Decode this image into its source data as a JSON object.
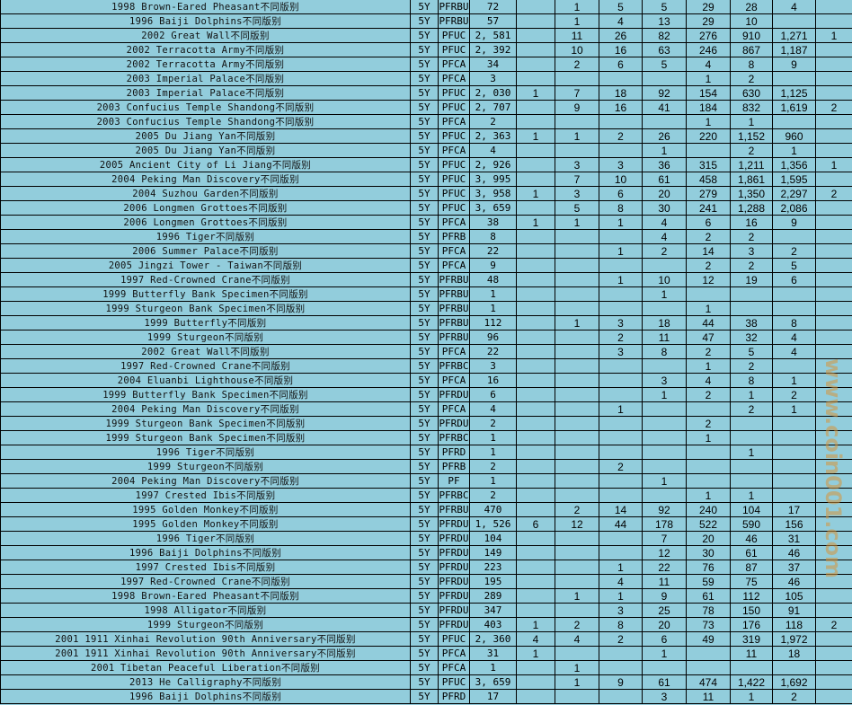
{
  "colors": {
    "cell_bg": "#92cddc",
    "border": "#000000",
    "watermark": "#d6963c"
  },
  "watermark": "www.coin001.com",
  "rows": [
    {
      "name": "1998 Brown-Eared Pheasant不同版别",
      "period": "5Y",
      "type": "PFRBU",
      "total": "72",
      "grades": [
        "",
        "1",
        "5",
        "5",
        "29",
        "28",
        "4",
        ""
      ]
    },
    {
      "name": "1996 Baiji Dolphins不同版别",
      "period": "5Y",
      "type": "PFRBU",
      "total": "57",
      "grades": [
        "",
        "1",
        "4",
        "13",
        "29",
        "10",
        "",
        ""
      ]
    },
    {
      "name": "2002 Great Wall不同版别",
      "period": "5Y",
      "type": "PFUC",
      "total": "2, 581",
      "grades": [
        "",
        "11",
        "26",
        "82",
        "276",
        "910",
        "1,271",
        "1"
      ]
    },
    {
      "name": "2002 Terracotta Army不同版别",
      "period": "5Y",
      "type": "PFUC",
      "total": "2, 392",
      "grades": [
        "",
        "10",
        "16",
        "63",
        "246",
        "867",
        "1,187",
        ""
      ]
    },
    {
      "name": "2002 Terracotta Army不同版别",
      "period": "5Y",
      "type": "PFCA",
      "total": "34",
      "grades": [
        "",
        "2",
        "6",
        "5",
        "4",
        "8",
        "9",
        ""
      ]
    },
    {
      "name": "2003 Imperial Palace不同版别",
      "period": "5Y",
      "type": "PFCA",
      "total": "3",
      "grades": [
        "",
        "",
        "",
        "",
        "1",
        "2",
        "",
        ""
      ]
    },
    {
      "name": "2003 Imperial Palace不同版别",
      "period": "5Y",
      "type": "PFUC",
      "total": "2, 030",
      "grades": [
        "1",
        "7",
        "18",
        "92",
        "154",
        "630",
        "1,125",
        ""
      ]
    },
    {
      "name": "2003 Confucius Temple Shandong不同版别",
      "period": "5Y",
      "type": "PFUC",
      "total": "2, 707",
      "grades": [
        "",
        "9",
        "16",
        "41",
        "184",
        "832",
        "1,619",
        "2"
      ]
    },
    {
      "name": "2003 Confucius Temple Shandong不同版别",
      "period": "5Y",
      "type": "PFCA",
      "total": "2",
      "grades": [
        "",
        "",
        "",
        "",
        "1",
        "1",
        "",
        ""
      ]
    },
    {
      "name": "2005 Du Jiang Yan不同版别",
      "period": "5Y",
      "type": "PFUC",
      "total": "2, 363",
      "grades": [
        "1",
        "1",
        "2",
        "26",
        "220",
        "1,152",
        "960",
        ""
      ]
    },
    {
      "name": "2005 Du Jiang Yan不同版别",
      "period": "5Y",
      "type": "PFCA",
      "total": "4",
      "grades": [
        "",
        "",
        "",
        "1",
        "",
        "2",
        "1",
        ""
      ]
    },
    {
      "name": "2005 Ancient City of Li Jiang不同版别",
      "period": "5Y",
      "type": "PFUC",
      "total": "2, 926",
      "grades": [
        "",
        "3",
        "3",
        "36",
        "315",
        "1,211",
        "1,356",
        "1"
      ]
    },
    {
      "name": "2004 Peking Man Discovery不同版别",
      "period": "5Y",
      "type": "PFUC",
      "total": "3, 995",
      "grades": [
        "",
        "7",
        "10",
        "61",
        "458",
        "1,861",
        "1,595",
        ""
      ]
    },
    {
      "name": "2004 Suzhou Garden不同版别",
      "period": "5Y",
      "type": "PFUC",
      "total": "3, 958",
      "grades": [
        "1",
        "3",
        "6",
        "20",
        "279",
        "1,350",
        "2,297",
        "2"
      ]
    },
    {
      "name": "2006 Longmen Grottoes不同版别",
      "period": "5Y",
      "type": "PFUC",
      "total": "3, 659",
      "grades": [
        "",
        "5",
        "8",
        "30",
        "241",
        "1,288",
        "2,086",
        ""
      ]
    },
    {
      "name": "2006 Longmen Grottoes不同版别",
      "period": "5Y",
      "type": "PFCA",
      "total": "38",
      "grades": [
        "1",
        "1",
        "1",
        "4",
        "6",
        "16",
        "9",
        ""
      ]
    },
    {
      "name": "1996 Tiger不同版别",
      "period": "5Y",
      "type": "PFRB",
      "total": "8",
      "grades": [
        "",
        "",
        "",
        "4",
        "2",
        "2",
        "",
        ""
      ]
    },
    {
      "name": "2006 Summer Palace不同版别",
      "period": "5Y",
      "type": "PFCA",
      "total": "22",
      "grades": [
        "",
        "",
        "1",
        "2",
        "14",
        "3",
        "2",
        ""
      ]
    },
    {
      "name": "2005 Jingzi Tower - Taiwan不同版别",
      "period": "5Y",
      "type": "PFCA",
      "total": "9",
      "grades": [
        "",
        "",
        "",
        "",
        "2",
        "2",
        "5",
        ""
      ]
    },
    {
      "name": "1997 Red-Crowned Crane不同版别",
      "period": "5Y",
      "type": "PFRBU",
      "total": "48",
      "grades": [
        "",
        "",
        "1",
        "10",
        "12",
        "19",
        "6",
        ""
      ]
    },
    {
      "name": "1999 Butterfly Bank Specimen不同版别",
      "period": "5Y",
      "type": "PFRBU",
      "total": "1",
      "grades": [
        "",
        "",
        "",
        "1",
        "",
        "",
        "",
        ""
      ]
    },
    {
      "name": "1999 Sturgeon Bank Specimen不同版别",
      "period": "5Y",
      "type": "PFRBU",
      "total": "1",
      "grades": [
        "",
        "",
        "",
        "",
        "1",
        "",
        "",
        ""
      ]
    },
    {
      "name": "1999 Butterfly不同版别",
      "period": "5Y",
      "type": "PFRBU",
      "total": "112",
      "grades": [
        "",
        "1",
        "3",
        "18",
        "44",
        "38",
        "8",
        ""
      ]
    },
    {
      "name": "1999 Sturgeon不同版别",
      "period": "5Y",
      "type": "PFRBU",
      "total": "96",
      "grades": [
        "",
        "",
        "2",
        "11",
        "47",
        "32",
        "4",
        ""
      ]
    },
    {
      "name": "2002 Great Wall不同版别",
      "period": "5Y",
      "type": "PFCA",
      "total": "22",
      "grades": [
        "",
        "",
        "3",
        "8",
        "2",
        "5",
        "4",
        ""
      ]
    },
    {
      "name": "1997 Red-Crowned Crane不同版别",
      "period": "5Y",
      "type": "PFRBC",
      "total": "3",
      "grades": [
        "",
        "",
        "",
        "",
        "1",
        "2",
        "",
        ""
      ]
    },
    {
      "name": "2004 Eluanbi Lighthouse不同版别",
      "period": "5Y",
      "type": "PFCA",
      "total": "16",
      "grades": [
        "",
        "",
        "",
        "3",
        "4",
        "8",
        "1",
        ""
      ]
    },
    {
      "name": "1999 Butterfly Bank Specimen不同版别",
      "period": "5Y",
      "type": "PFRDU",
      "total": "6",
      "grades": [
        "",
        "",
        "",
        "1",
        "2",
        "1",
        "2",
        ""
      ]
    },
    {
      "name": "2004 Peking Man Discovery不同版别",
      "period": "5Y",
      "type": "PFCA",
      "total": "4",
      "grades": [
        "",
        "",
        "1",
        "",
        "",
        "2",
        "1",
        ""
      ]
    },
    {
      "name": "1999 Sturgeon Bank Specimen不同版别",
      "period": "5Y",
      "type": "PFRDU",
      "total": "2",
      "grades": [
        "",
        "",
        "",
        "",
        "2",
        "",
        "",
        ""
      ]
    },
    {
      "name": "1999 Sturgeon Bank Specimen不同版别",
      "period": "5Y",
      "type": "PFRBC",
      "total": "1",
      "grades": [
        "",
        "",
        "",
        "",
        "1",
        "",
        "",
        ""
      ]
    },
    {
      "name": "1996 Tiger不同版别",
      "period": "5Y",
      "type": "PFRD",
      "total": "1",
      "grades": [
        "",
        "",
        "",
        "",
        "",
        "1",
        "",
        ""
      ]
    },
    {
      "name": "1999 Sturgeon不同版别",
      "period": "5Y",
      "type": "PFRB",
      "total": "2",
      "grades": [
        "",
        "",
        "2",
        "",
        "",
        "",
        "",
        ""
      ]
    },
    {
      "name": "2004 Peking Man Discovery不同版别",
      "period": "5Y",
      "type": "PF",
      "total": "1",
      "grades": [
        "",
        "",
        "",
        "1",
        "",
        "",
        "",
        ""
      ]
    },
    {
      "name": "1997 Crested Ibis不同版别",
      "period": "5Y",
      "type": "PFRBC",
      "total": "2",
      "grades": [
        "",
        "",
        "",
        "",
        "1",
        "1",
        "",
        ""
      ]
    },
    {
      "name": "1995 Golden Monkey不同版别",
      "period": "5Y",
      "type": "PFRBU",
      "total": "470",
      "grades": [
        "",
        "2",
        "14",
        "92",
        "240",
        "104",
        "17",
        ""
      ]
    },
    {
      "name": "1995 Golden Monkey不同版别",
      "period": "5Y",
      "type": "PFRDU",
      "total": "1, 526",
      "grades": [
        "6",
        "12",
        "44",
        "178",
        "522",
        "590",
        "156",
        ""
      ]
    },
    {
      "name": "1996 Tiger不同版别",
      "period": "5Y",
      "type": "PFRDU",
      "total": "104",
      "grades": [
        "",
        "",
        "",
        "7",
        "20",
        "46",
        "31",
        ""
      ]
    },
    {
      "name": "1996 Baiji Dolphins不同版别",
      "period": "5Y",
      "type": "PFRDU",
      "total": "149",
      "grades": [
        "",
        "",
        "",
        "12",
        "30",
        "61",
        "46",
        ""
      ]
    },
    {
      "name": "1997 Crested Ibis不同版别",
      "period": "5Y",
      "type": "PFRDU",
      "total": "223",
      "grades": [
        "",
        "",
        "1",
        "22",
        "76",
        "87",
        "37",
        ""
      ]
    },
    {
      "name": "1997 Red-Crowned Crane不同版别",
      "period": "5Y",
      "type": "PFRDU",
      "total": "195",
      "grades": [
        "",
        "",
        "4",
        "11",
        "59",
        "75",
        "46",
        ""
      ]
    },
    {
      "name": "1998 Brown-Eared Pheasant不同版别",
      "period": "5Y",
      "type": "PFRDU",
      "total": "289",
      "grades": [
        "",
        "1",
        "1",
        "9",
        "61",
        "112",
        "105",
        ""
      ]
    },
    {
      "name": "1998 Alligator不同版别",
      "period": "5Y",
      "type": "PFRDU",
      "total": "347",
      "grades": [
        "",
        "",
        "3",
        "25",
        "78",
        "150",
        "91",
        ""
      ]
    },
    {
      "name": "1999 Sturgeon不同版别",
      "period": "5Y",
      "type": "PFRDU",
      "total": "403",
      "grades": [
        "1",
        "2",
        "8",
        "20",
        "73",
        "176",
        "118",
        "2"
      ]
    },
    {
      "name": "2001 1911 Xinhai Revolution 90th Anniversary不同版别",
      "period": "5Y",
      "type": "PFUC",
      "total": "2, 360",
      "grades": [
        "4",
        "4",
        "2",
        "6",
        "49",
        "319",
        "1,972",
        ""
      ]
    },
    {
      "name": "2001 1911 Xinhai Revolution 90th Anniversary不同版别",
      "period": "5Y",
      "type": "PFCA",
      "total": "31",
      "grades": [
        "1",
        "",
        "",
        "1",
        "",
        "11",
        "18",
        ""
      ]
    },
    {
      "name": "2001 Tibetan Peaceful Liberation不同版别",
      "period": "5Y",
      "type": "PFCA",
      "total": "1",
      "grades": [
        "",
        "1",
        "",
        "",
        "",
        "",
        "",
        ""
      ]
    },
    {
      "name": "2013 He Calligraphy不同版别",
      "period": "5Y",
      "type": "PFUC",
      "total": "3, 659",
      "grades": [
        "",
        "1",
        "9",
        "61",
        "474",
        "1,422",
        "1,692",
        ""
      ]
    },
    {
      "name": "1996 Baiji Dolphins不同版别",
      "period": "5Y",
      "type": "PFRD",
      "total": "17",
      "grades": [
        "",
        "",
        "",
        "3",
        "11",
        "1",
        "2",
        ""
      ]
    }
  ]
}
